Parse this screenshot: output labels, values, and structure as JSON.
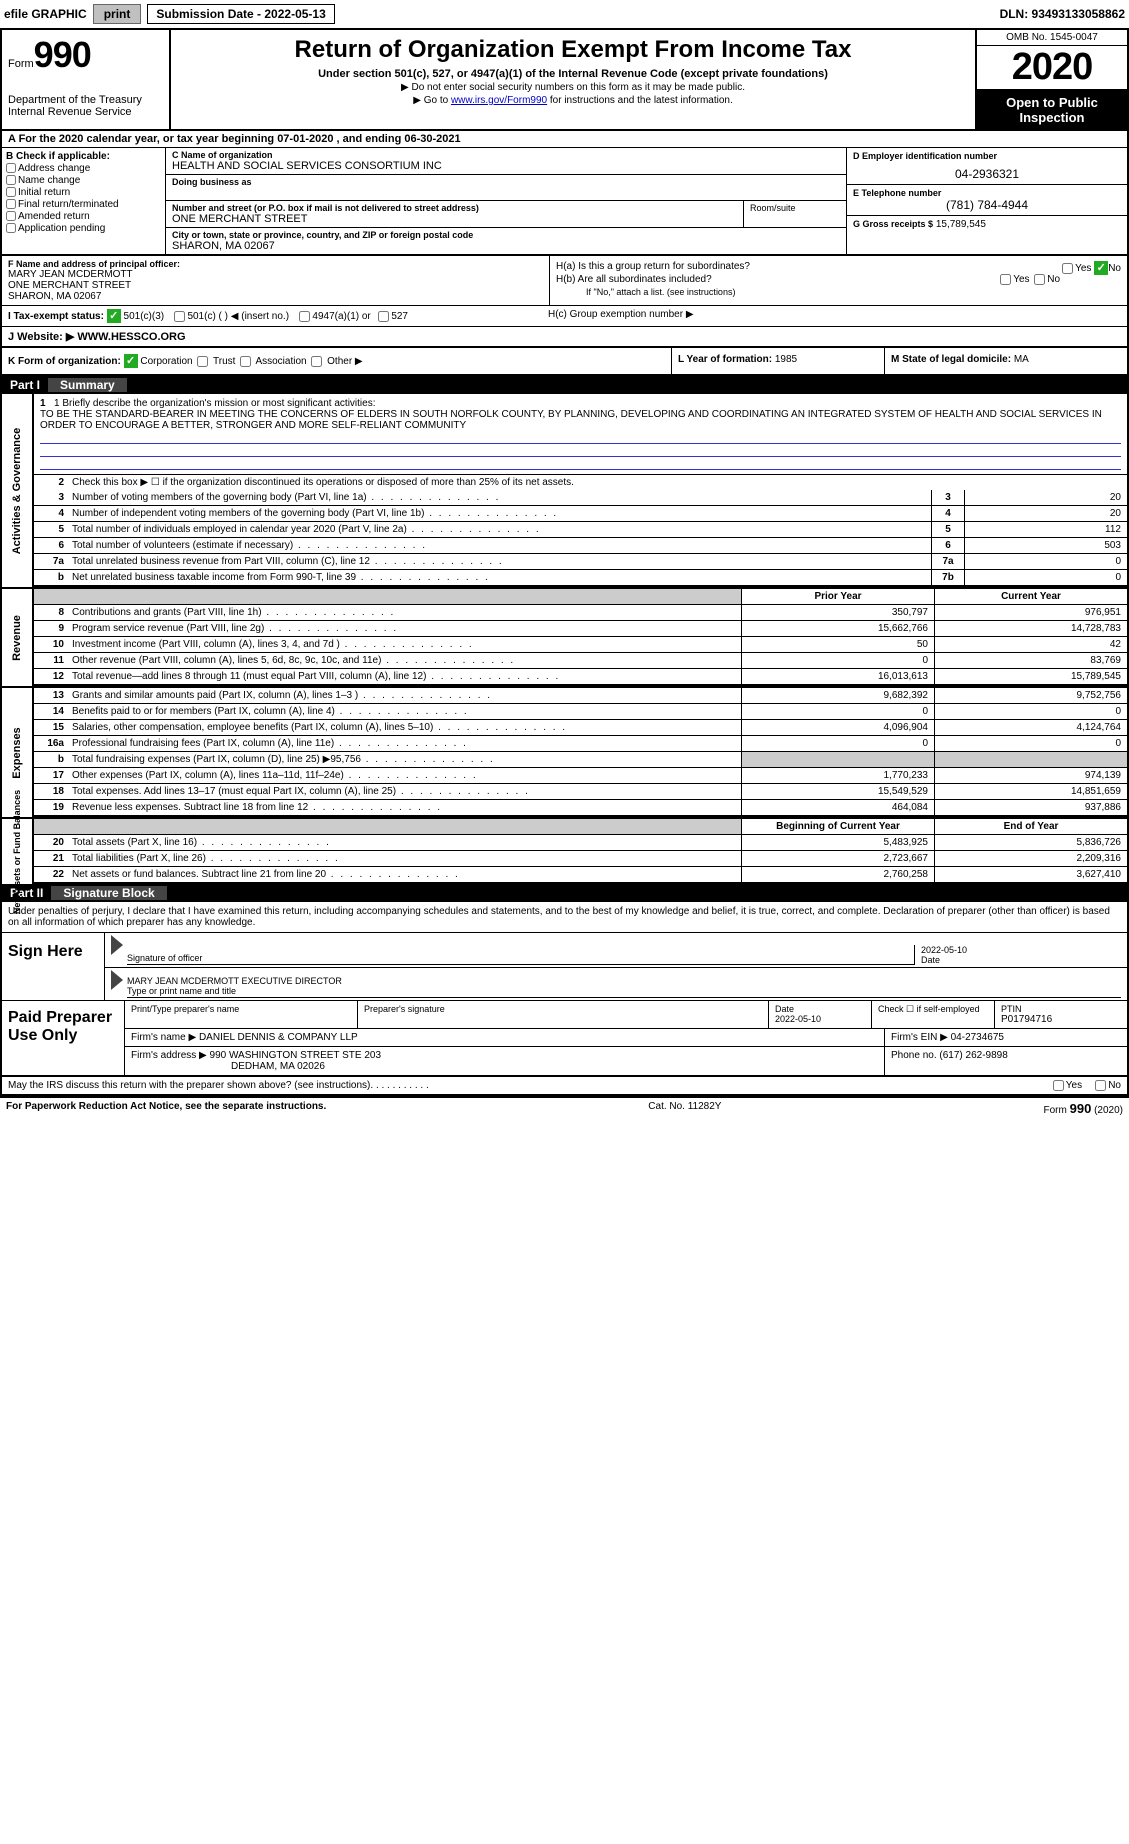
{
  "topbar": {
    "efile": "efile GRAPHIC",
    "print": "print",
    "submission": "Submission Date - 2022-05-13",
    "dln": "DLN: 93493133058862"
  },
  "header": {
    "form_label": "Form",
    "form_number": "990",
    "dept": "Department of the Treasury",
    "irs": "Internal Revenue Service",
    "title": "Return of Organization Exempt From Income Tax",
    "sub": "Under section 501(c), 527, or 4947(a)(1) of the Internal Revenue Code (except private foundations)",
    "note1": "▶ Do not enter social security numbers on this form as it may be made public.",
    "note2_prefix": "▶ Go to ",
    "note2_link": "www.irs.gov/Form990",
    "note2_suffix": " for instructions and the latest information.",
    "omb": "OMB No. 1545-0047",
    "year": "2020",
    "open": "Open to Public Inspection"
  },
  "period": {
    "text": "A For the 2020 calendar year, or tax year beginning 07-01-2020   , and ending 06-30-2021"
  },
  "section_b": {
    "title": "B Check if applicable:",
    "items": [
      "Address change",
      "Name change",
      "Initial return",
      "Final return/terminated",
      "Amended return",
      "Application pending"
    ]
  },
  "section_c": {
    "name_label": "C Name of organization",
    "name": "HEALTH AND SOCIAL SERVICES CONSORTIUM INC",
    "dba_label": "Doing business as",
    "addr_label": "Number and street (or P.O. box if mail is not delivered to street address)",
    "addr": "ONE MERCHANT STREET",
    "room_label": "Room/suite",
    "city_label": "City or town, state or province, country, and ZIP or foreign postal code",
    "city": "SHARON, MA  02067"
  },
  "section_d": {
    "label": "D Employer identification number",
    "value": "04-2936321"
  },
  "section_e": {
    "label": "E Telephone number",
    "value": "(781) 784-4944"
  },
  "section_g": {
    "label": "G Gross receipts $",
    "value": "15,789,545"
  },
  "section_f": {
    "label": "F Name and address of principal officer:",
    "name": "MARY JEAN MCDERMOTT",
    "addr1": "ONE MERCHANT STREET",
    "addr2": "SHARON, MA  02067"
  },
  "section_h": {
    "a": "H(a)  Is this a group return for subordinates?",
    "b": "H(b)  Are all subordinates included?",
    "bnote": "If \"No,\" attach a list. (see instructions)",
    "c": "H(c)  Group exemption number ▶",
    "yes": "Yes",
    "no": "No"
  },
  "section_i": {
    "label": "I   Tax-exempt status:",
    "opt1": "501(c)(3)",
    "opt2": "501(c) (   ) ◀ (insert no.)",
    "opt3": "4947(a)(1) or",
    "opt4": "527"
  },
  "section_j": {
    "label": "J   Website: ▶",
    "value": "WWW.HESSCO.ORG"
  },
  "section_k": {
    "label": "K Form of organization:",
    "opts": [
      "Corporation",
      "Trust",
      "Association",
      "Other ▶"
    ]
  },
  "section_l": {
    "label": "L Year of formation:",
    "value": "1985"
  },
  "section_m": {
    "label": "M State of legal domicile:",
    "value": "MA"
  },
  "part1": {
    "label": "Part I",
    "title": "Summary"
  },
  "governance": {
    "vert": "Activities & Governance",
    "line1_label": "1  Briefly describe the organization's mission or most significant activities:",
    "line1_text": "TO BE THE STANDARD-BEARER IN MEETING THE CONCERNS OF ELDERS IN SOUTH NORFOLK COUNTY, BY PLANNING, DEVELOPING AND COORDINATING AN INTEGRATED SYSTEM OF HEALTH AND SOCIAL SERVICES IN ORDER TO ENCOURAGE A BETTER, STRONGER AND MORE SELF-RELIANT COMMUNITY",
    "line2": "Check this box ▶ ☐ if the organization discontinued its operations or disposed of more than 25% of its net assets.",
    "rows": [
      {
        "n": "3",
        "d": "Number of voting members of the governing body (Part VI, line 1a)",
        "box": "3",
        "v": "20"
      },
      {
        "n": "4",
        "d": "Number of independent voting members of the governing body (Part VI, line 1b)",
        "box": "4",
        "v": "20"
      },
      {
        "n": "5",
        "d": "Total number of individuals employed in calendar year 2020 (Part V, line 2a)",
        "box": "5",
        "v": "112"
      },
      {
        "n": "6",
        "d": "Total number of volunteers (estimate if necessary)",
        "box": "6",
        "v": "503"
      },
      {
        "n": "7a",
        "d": "Total unrelated business revenue from Part VIII, column (C), line 12",
        "box": "7a",
        "v": "0"
      },
      {
        "n": "b",
        "d": "Net unrelated business taxable income from Form 990-T, line 39",
        "box": "7b",
        "v": "0"
      }
    ]
  },
  "revenue": {
    "vert": "Revenue",
    "header_prior": "Prior Year",
    "header_current": "Current Year",
    "rows": [
      {
        "n": "8",
        "d": "Contributions and grants (Part VIII, line 1h)",
        "p": "350,797",
        "c": "976,951"
      },
      {
        "n": "9",
        "d": "Program service revenue (Part VIII, line 2g)",
        "p": "15,662,766",
        "c": "14,728,783"
      },
      {
        "n": "10",
        "d": "Investment income (Part VIII, column (A), lines 3, 4, and 7d )",
        "p": "50",
        "c": "42"
      },
      {
        "n": "11",
        "d": "Other revenue (Part VIII, column (A), lines 5, 6d, 8c, 9c, 10c, and 11e)",
        "p": "0",
        "c": "83,769"
      },
      {
        "n": "12",
        "d": "Total revenue—add lines 8 through 11 (must equal Part VIII, column (A), line 12)",
        "p": "16,013,613",
        "c": "15,789,545"
      }
    ]
  },
  "expenses": {
    "vert": "Expenses",
    "rows": [
      {
        "n": "13",
        "d": "Grants and similar amounts paid (Part IX, column (A), lines 1–3 )",
        "p": "9,682,392",
        "c": "9,752,756"
      },
      {
        "n": "14",
        "d": "Benefits paid to or for members (Part IX, column (A), line 4)",
        "p": "0",
        "c": "0"
      },
      {
        "n": "15",
        "d": "Salaries, other compensation, employee benefits (Part IX, column (A), lines 5–10)",
        "p": "4,096,904",
        "c": "4,124,764"
      },
      {
        "n": "16a",
        "d": "Professional fundraising fees (Part IX, column (A), line 11e)",
        "p": "0",
        "c": "0"
      },
      {
        "n": "b",
        "d": "Total fundraising expenses (Part IX, column (D), line 25) ▶95,756",
        "p": "",
        "c": "",
        "shaded": true
      },
      {
        "n": "17",
        "d": "Other expenses (Part IX, column (A), lines 11a–11d, 11f–24e)",
        "p": "1,770,233",
        "c": "974,139"
      },
      {
        "n": "18",
        "d": "Total expenses. Add lines 13–17 (must equal Part IX, column (A), line 25)",
        "p": "15,549,529",
        "c": "14,851,659"
      },
      {
        "n": "19",
        "d": "Revenue less expenses. Subtract line 18 from line 12",
        "p": "464,084",
        "c": "937,886"
      }
    ]
  },
  "netassets": {
    "vert": "Net Assets or Fund Balances",
    "header_begin": "Beginning of Current Year",
    "header_end": "End of Year",
    "rows": [
      {
        "n": "20",
        "d": "Total assets (Part X, line 16)",
        "p": "5,483,925",
        "c": "5,836,726"
      },
      {
        "n": "21",
        "d": "Total liabilities (Part X, line 26)",
        "p": "2,723,667",
        "c": "2,209,316"
      },
      {
        "n": "22",
        "d": "Net assets or fund balances. Subtract line 21 from line 20",
        "p": "2,760,258",
        "c": "3,627,410"
      }
    ]
  },
  "part2": {
    "label": "Part II",
    "title": "Signature Block"
  },
  "sig": {
    "intro": "Under penalties of perjury, I declare that I have examined this return, including accompanying schedules and statements, and to the best of my knowledge and belief, it is true, correct, and complete. Declaration of preparer (other than officer) is based on all information of which preparer has any knowledge.",
    "sign_here": "Sign Here",
    "sig_officer": "Signature of officer",
    "date": "Date",
    "date_val": "2022-05-10",
    "name_title": "MARY JEAN MCDERMOTT  EXECUTIVE DIRECTOR",
    "type_name": "Type or print name and title"
  },
  "preparer": {
    "label": "Paid Preparer Use Only",
    "print_name": "Print/Type preparer's name",
    "prep_sig": "Preparer's signature",
    "date_label": "Date",
    "date_val": "2022-05-10",
    "check_label": "Check ☐ if self-employed",
    "ptin_label": "PTIN",
    "ptin": "P01794716",
    "firm_name_label": "Firm's name    ▶",
    "firm_name": "DANIEL DENNIS & COMPANY LLP",
    "firm_ein_label": "Firm's EIN ▶",
    "firm_ein": "04-2734675",
    "firm_addr_label": "Firm's address ▶",
    "firm_addr1": "990 WASHINGTON STREET STE 203",
    "firm_addr2": "DEDHAM, MA  02026",
    "phone_label": "Phone no.",
    "phone": "(617) 262-9898"
  },
  "discuss": {
    "text": "May the IRS discuss this return with the preparer shown above? (see instructions)",
    "yes": "Yes",
    "no": "No"
  },
  "footer": {
    "left": "For Paperwork Reduction Act Notice, see the separate instructions.",
    "mid": "Cat. No. 11282Y",
    "right_form": "Form 990 (2020)"
  }
}
